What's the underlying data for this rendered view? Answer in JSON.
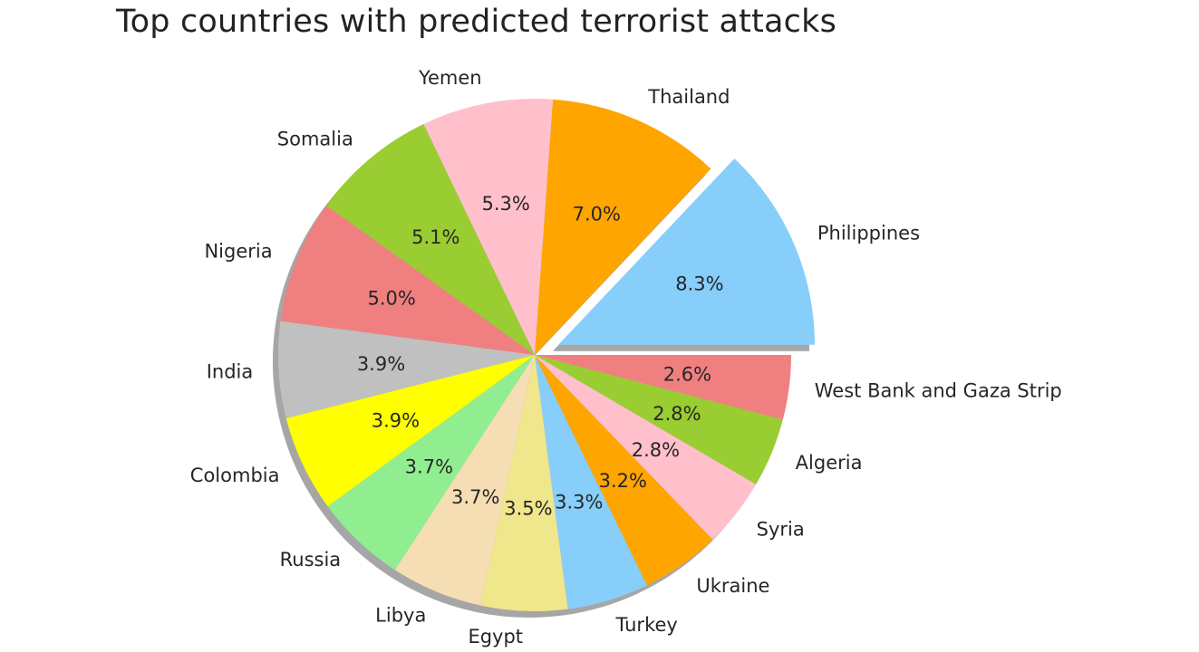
{
  "chart_data": {
    "type": "pie",
    "title": "Top countries with predicted terrorist attacks",
    "slices": [
      {
        "label": "Philippines",
        "value": 8.3,
        "pct_label": "8.3%",
        "color": "#87CEFA",
        "exploded": true
      },
      {
        "label": "Thailand",
        "value": 7.0,
        "pct_label": "7.0%",
        "color": "#FFA500"
      },
      {
        "label": "Yemen",
        "value": 5.3,
        "pct_label": "5.3%",
        "color": "#FFC0CB"
      },
      {
        "label": "Somalia",
        "value": 5.1,
        "pct_label": "5.1%",
        "color": "#9ACD32"
      },
      {
        "label": "Nigeria",
        "value": 5.0,
        "pct_label": "5.0%",
        "color": "#F08080"
      },
      {
        "label": "India",
        "value": 3.9,
        "pct_label": "3.9%",
        "color": "#C0C0C0"
      },
      {
        "label": "Colombia",
        "value": 3.9,
        "pct_label": "3.9%",
        "color": "#FFFF00"
      },
      {
        "label": "Russia",
        "value": 3.7,
        "pct_label": "3.7%",
        "color": "#90EE90"
      },
      {
        "label": "Libya",
        "value": 3.7,
        "pct_label": "3.7%",
        "color": "#F5DEB3"
      },
      {
        "label": "Egypt",
        "value": 3.5,
        "pct_label": "3.5%",
        "color": "#F0E68C"
      },
      {
        "label": "Turkey",
        "value": 3.3,
        "pct_label": "3.3%",
        "color": "#87CEFA"
      },
      {
        "label": "Ukraine",
        "value": 3.2,
        "pct_label": "3.2%",
        "color": "#FFA500"
      },
      {
        "label": "Syria",
        "value": 2.8,
        "pct_label": "2.8%",
        "color": "#FFC0CB"
      },
      {
        "label": "Algeria",
        "value": 2.8,
        "pct_label": "2.8%",
        "color": "#9ACD32"
      },
      {
        "label": "West Bank and Gaza Strip",
        "value": 2.6,
        "pct_label": "2.6%",
        "color": "#F08080"
      }
    ],
    "start_angle_deg": 0,
    "direction": "counterclockwise",
    "shadow": true,
    "legend": "none"
  }
}
